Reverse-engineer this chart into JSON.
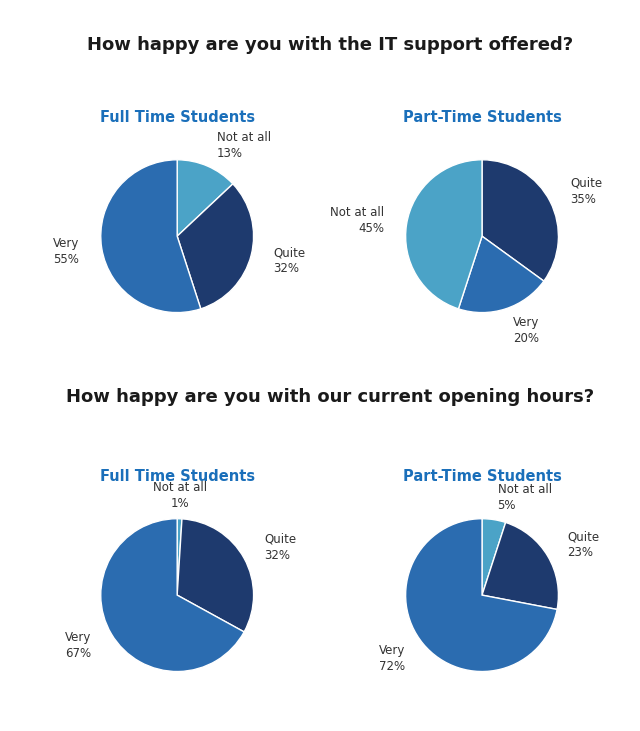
{
  "title1": "How happy are you with the IT support offered?",
  "title2": "How happy are you with our current opening hours?",
  "subtitle_full": "Full Time Students",
  "subtitle_part": "Part-Time Students",
  "subtitle_color": "#1a6fba",
  "title_color": "#1a1a1a",
  "background_color": "#ffffff",
  "label_color": "#333333",
  "it_full": {
    "labels": [
      "Not at all",
      "Quite",
      "Very"
    ],
    "pcts": [
      "13%",
      "32%",
      "55%"
    ],
    "values": [
      13,
      32,
      55
    ],
    "colors": [
      "#4ba3c7",
      "#1e3a6e",
      "#2b6cb0"
    ],
    "startangle": 90,
    "counterclock": false
  },
  "it_part": {
    "labels": [
      "Quite",
      "Very",
      "Not at all"
    ],
    "pcts": [
      "35%",
      "20%",
      "45%"
    ],
    "values": [
      35,
      20,
      45
    ],
    "colors": [
      "#1e3a6e",
      "#2b6cb0",
      "#4ba3c7"
    ],
    "startangle": 90,
    "counterclock": false
  },
  "hours_full": {
    "labels": [
      "Not at all",
      "Quite",
      "Very"
    ],
    "pcts": [
      "1%",
      "32%",
      "67%"
    ],
    "values": [
      1,
      32,
      67
    ],
    "colors": [
      "#4ba3c7",
      "#1e3a6e",
      "#2b6cb0"
    ],
    "startangle": 90,
    "counterclock": false
  },
  "hours_part": {
    "labels": [
      "Not at all",
      "Quite",
      "Very"
    ],
    "pcts": [
      "5%",
      "23%",
      "72%"
    ],
    "values": [
      5,
      23,
      72
    ],
    "colors": [
      "#4ba3c7",
      "#1e3a6e",
      "#2b6cb0"
    ],
    "startangle": 90,
    "counterclock": false
  }
}
